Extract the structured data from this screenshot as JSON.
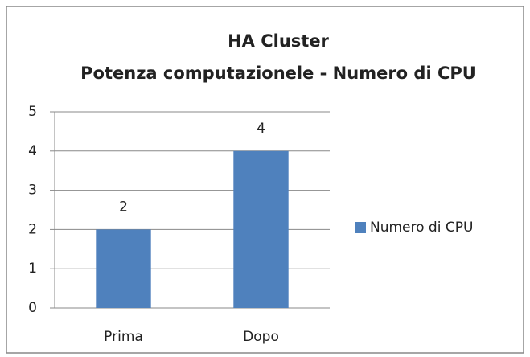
{
  "chart_data": {
    "type": "bar",
    "title": [
      "HA Cluster",
      "Potenza computazionele - Numero di CPU"
    ],
    "categories": [
      "Prima",
      "Dopo"
    ],
    "series": [
      {
        "name": "Numero di CPU",
        "color": "#4f81bd",
        "values": [
          2,
          4
        ]
      }
    ],
    "ylim": [
      0,
      5
    ],
    "yticks": [
      0,
      1,
      2,
      3,
      4,
      5
    ],
    "grid": true,
    "legend": "right",
    "data_labels": true
  }
}
